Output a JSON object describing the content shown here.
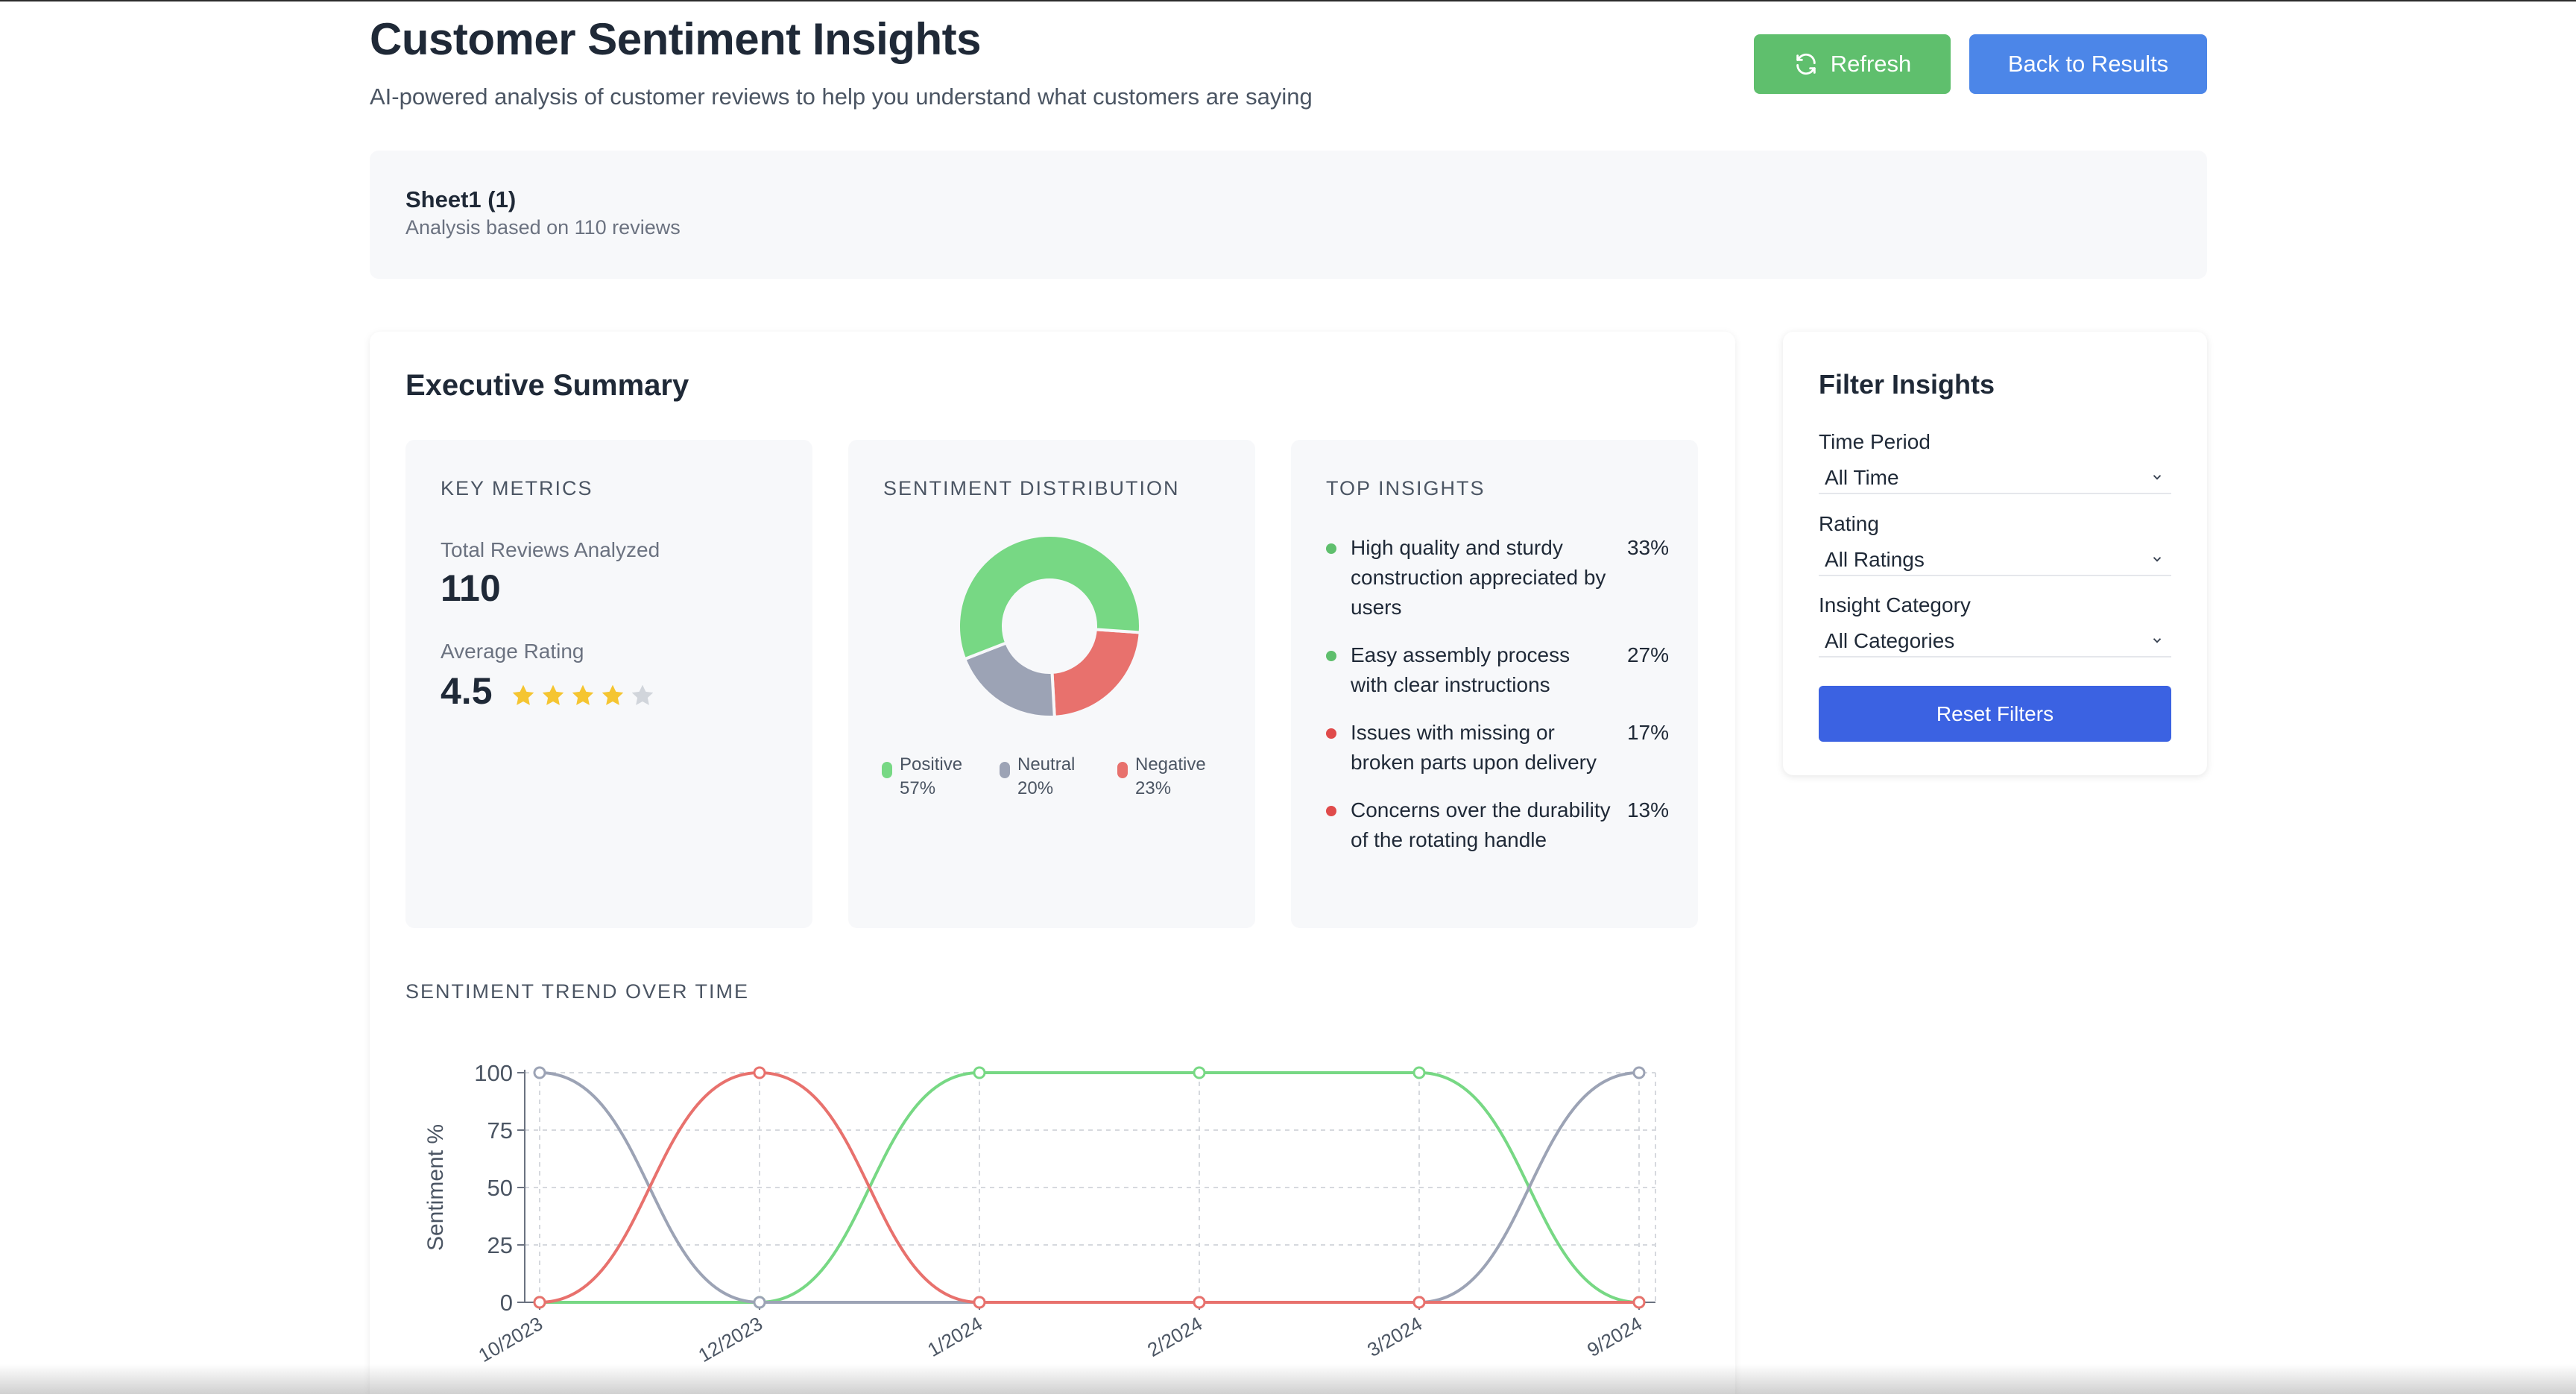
{
  "header": {
    "title": "Customer Sentiment Insights",
    "subtitle": "AI-powered analysis of customer reviews to help you understand what customers are saying",
    "refresh_label": "Refresh",
    "back_label": "Back to Results"
  },
  "sheet": {
    "name": "Sheet1 (1)",
    "summary": "Analysis based on 110 reviews"
  },
  "executive_summary": {
    "title": "Executive Summary",
    "key_metrics": {
      "heading": "KEY METRICS",
      "total_label": "Total Reviews Analyzed",
      "total_value": "110",
      "avg_label": "Average Rating",
      "avg_value": "4.5",
      "stars_filled": 4,
      "stars_total": 5
    },
    "sentiment_distribution": {
      "heading": "SENTIMENT DISTRIBUTION",
      "legend": [
        {
          "name": "Positive",
          "pct": "57%",
          "color": "#77d884"
        },
        {
          "name": "Neutral",
          "pct": "20%",
          "color": "#9ca3b5"
        },
        {
          "name": "Negative",
          "pct": "23%",
          "color": "#e8716d"
        }
      ]
    },
    "top_insights": {
      "heading": "TOP INSIGHTS",
      "items": [
        {
          "text": "High quality and sturdy construction appreciated by users",
          "pct": "33%",
          "color": "#5fbf6d"
        },
        {
          "text": "Easy assembly process with clear instructions",
          "pct": "27%",
          "color": "#5fbf6d"
        },
        {
          "text": "Issues with missing or broken parts upon delivery",
          "pct": "17%",
          "color": "#e04b4b"
        },
        {
          "text": "Concerns over the durability of the rotating handle",
          "pct": "13%",
          "color": "#e04b4b"
        }
      ]
    },
    "trend_title": "SENTIMENT TREND OVER TIME"
  },
  "filters": {
    "title": "Filter Insights",
    "time_label": "Time Period",
    "time_value": "All Time",
    "rating_label": "Rating",
    "rating_value": "All Ratings",
    "category_label": "Insight Category",
    "category_value": "All Categories",
    "reset_label": "Reset Filters"
  },
  "chart_data": [
    {
      "type": "pie",
      "subtype": "donut",
      "labels": [
        "Positive",
        "Neutral",
        "Negative"
      ],
      "values": [
        57,
        20,
        23
      ],
      "colors": [
        "#77d884",
        "#9ca3b5",
        "#e8716d"
      ]
    },
    {
      "type": "line",
      "categories": [
        "10/2023",
        "12/2023",
        "1/2024",
        "2/2024",
        "3/2024",
        "9/2024"
      ],
      "series": [
        {
          "name": "Positive",
          "values": [
            0,
            0,
            100,
            100,
            100,
            0
          ],
          "color": "#77d884"
        },
        {
          "name": "Neutral",
          "values": [
            100,
            0,
            0,
            0,
            0,
            100
          ],
          "color": "#9ca3b5"
        },
        {
          "name": "Negative",
          "values": [
            0,
            100,
            0,
            0,
            0,
            0
          ],
          "color": "#e8716d"
        }
      ],
      "ylabel": "Sentiment %",
      "yticks": [
        0,
        25,
        50,
        75,
        100
      ],
      "ylim": [
        0,
        100
      ],
      "grid": true
    }
  ]
}
